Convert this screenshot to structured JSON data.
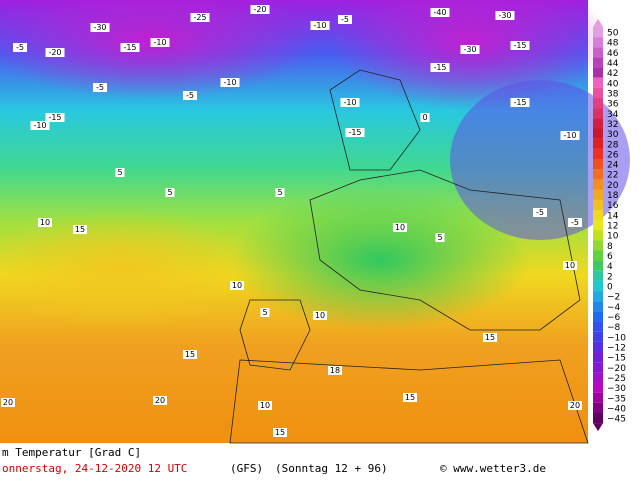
{
  "legend": {
    "labels": [
      "50",
      "48",
      "46",
      "44",
      "42",
      "40",
      "38",
      "36",
      "34",
      "32",
      "30",
      "28",
      "26",
      "24",
      "22",
      "20",
      "18",
      "16",
      "14",
      "12",
      "10",
      "8",
      "6",
      "4",
      "2",
      "0",
      "−2",
      "−4",
      "−6",
      "−8",
      "−10",
      "−12",
      "−15",
      "−20",
      "−25",
      "−30",
      "−35",
      "−40",
      "−45"
    ]
  },
  "map_labels": [
    "-5",
    "-20",
    "-30",
    "-15",
    "-10",
    "-25",
    "-20",
    "-10",
    "-5",
    "-40",
    "-30",
    "-30",
    "-15",
    "-15",
    "-10",
    "-15",
    "-5",
    "-5",
    "-10",
    "-10",
    "-15",
    "0",
    "-15",
    "-10",
    "5",
    "10",
    "15",
    "5",
    "5",
    "10",
    "10",
    "5",
    "-5",
    "-5",
    "5",
    "10",
    "15",
    "18",
    "20",
    "20",
    "10",
    "15",
    "20",
    "10",
    "15",
    "15"
  ],
  "footer": {
    "variable": "m Temperatur [Grad C]",
    "date": "onnerstag, 24-12-2020  12 UTC",
    "model": "(GFS)",
    "run": "(Sonntag 12 + 96)",
    "credit": "© www.wetter3.de"
  }
}
